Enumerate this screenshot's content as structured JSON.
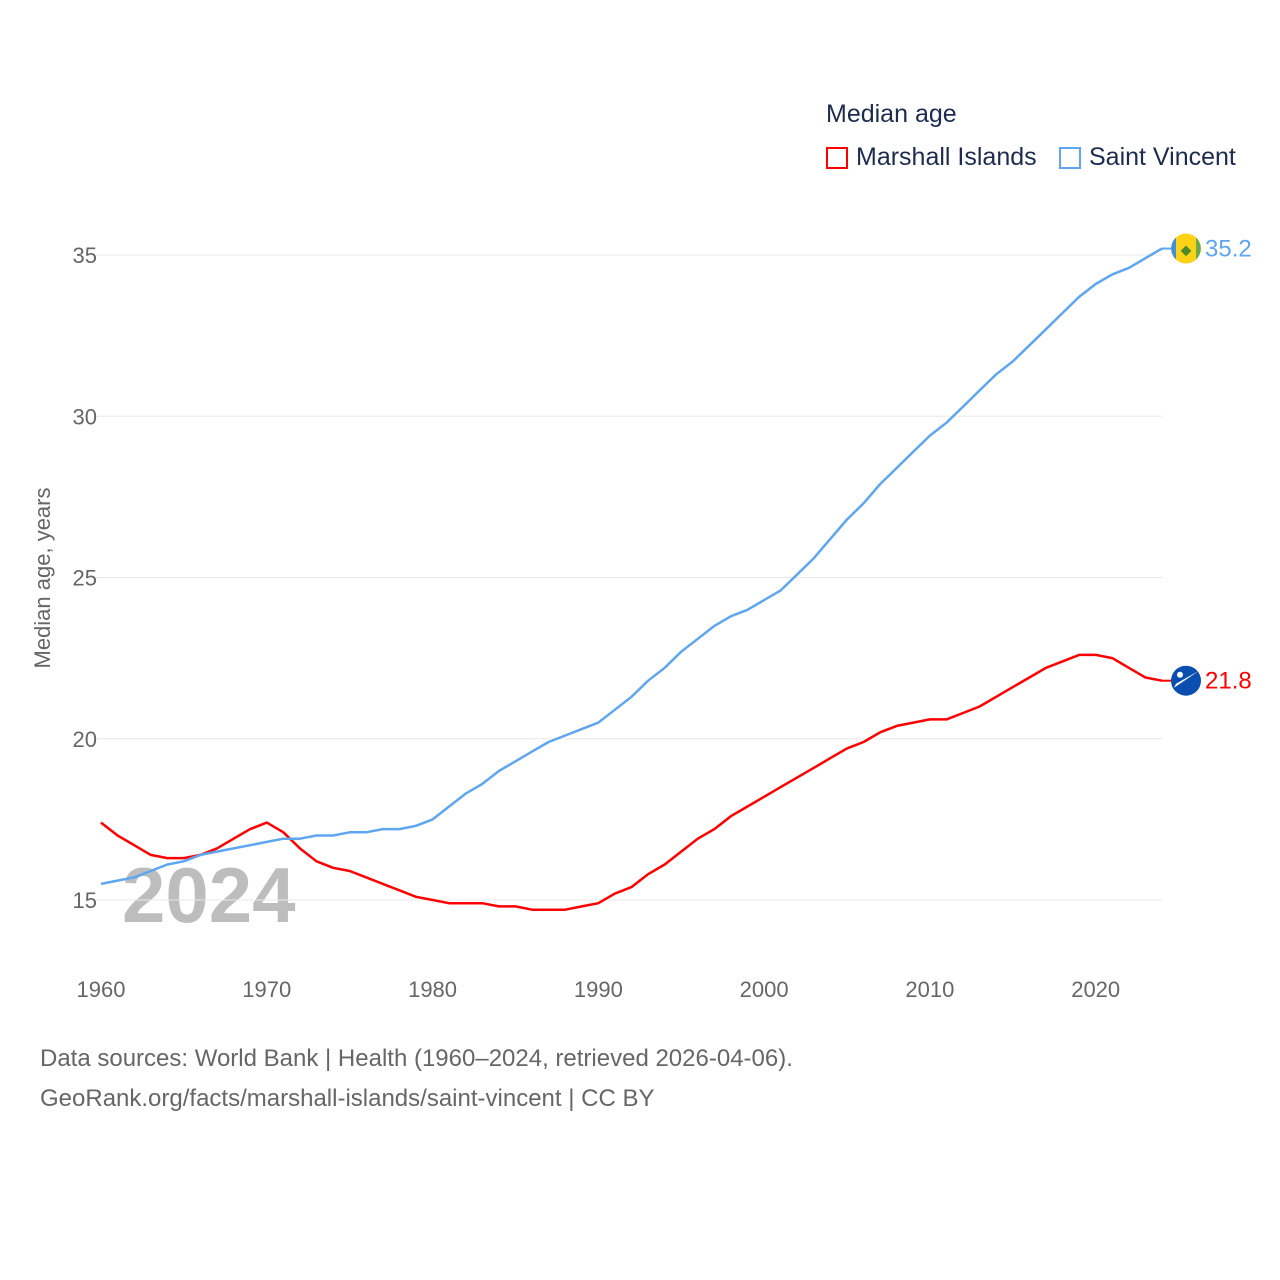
{
  "legend": {
    "title": "Median age",
    "items": [
      {
        "label": "Marshall Islands",
        "color": "#ff0000"
      },
      {
        "label": "Saint Vincent",
        "color": "#5ea6f0"
      }
    ]
  },
  "year_watermark": "2024",
  "footer": {
    "line1": "Data sources: World Bank | Health (1960–2024, retrieved 2026-04-06).",
    "line2": "GeoRank.org/facts/marshall-islands/saint-vincent | CC BY"
  },
  "chart_data": {
    "type": "line",
    "title": "Median age",
    "xlabel": "",
    "ylabel": "Median age, years",
    "xlim": [
      1960,
      2024
    ],
    "ylim": [
      15,
      35
    ],
    "xticks": [
      "1960",
      "1970",
      "1980",
      "1990",
      "2000",
      "2010",
      "2020"
    ],
    "yticks": [
      "15",
      "20",
      "25",
      "30",
      "35"
    ],
    "grid": true,
    "legend_position": "top-right",
    "x_start": 1960,
    "series": [
      {
        "name": "Marshall Islands",
        "color": "#ff0000",
        "end_label": "21.8",
        "values": [
          17.4,
          17.0,
          16.7,
          16.4,
          16.3,
          16.3,
          16.4,
          16.6,
          16.9,
          17.2,
          17.4,
          17.1,
          16.6,
          16.2,
          16.0,
          15.9,
          15.7,
          15.5,
          15.3,
          15.1,
          15.0,
          14.9,
          14.9,
          14.9,
          14.8,
          14.8,
          14.7,
          14.7,
          14.7,
          14.8,
          14.9,
          15.2,
          15.4,
          15.8,
          16.1,
          16.5,
          16.9,
          17.2,
          17.6,
          17.9,
          18.2,
          18.5,
          18.8,
          19.1,
          19.4,
          19.7,
          19.9,
          20.2,
          20.4,
          20.5,
          20.6,
          20.6,
          20.8,
          21.0,
          21.3,
          21.6,
          21.9,
          22.2,
          22.4,
          22.6,
          22.6,
          22.5,
          22.2,
          21.9,
          21.8
        ]
      },
      {
        "name": "Saint Vincent",
        "color": "#5ea6f0",
        "end_label": "35.2",
        "values": [
          15.5,
          15.6,
          15.7,
          15.9,
          16.1,
          16.2,
          16.4,
          16.5,
          16.6,
          16.7,
          16.8,
          16.9,
          16.9,
          17.0,
          17.0,
          17.1,
          17.1,
          17.2,
          17.2,
          17.3,
          17.5,
          17.9,
          18.3,
          18.6,
          19.0,
          19.3,
          19.6,
          19.9,
          20.1,
          20.3,
          20.5,
          20.9,
          21.3,
          21.8,
          22.2,
          22.7,
          23.1,
          23.5,
          23.8,
          24.0,
          24.3,
          24.6,
          25.1,
          25.6,
          26.2,
          26.8,
          27.3,
          27.9,
          28.4,
          28.9,
          29.4,
          29.8,
          30.3,
          30.8,
          31.3,
          31.7,
          32.2,
          32.7,
          33.2,
          33.7,
          34.1,
          34.4,
          34.6,
          34.9,
          35.2
        ]
      }
    ]
  }
}
